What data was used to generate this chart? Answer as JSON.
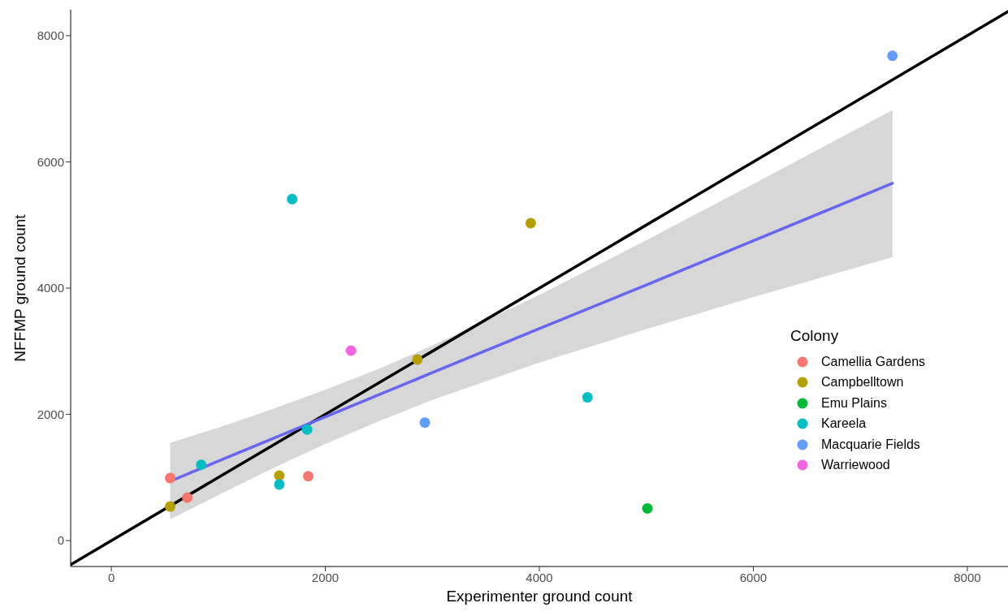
{
  "chart_data": {
    "type": "scatter",
    "xlabel": "Experimenter ground count",
    "ylabel": "NFFMP ground count",
    "legend_title": "Colony",
    "legend": "right",
    "marker": "circle",
    "xlim": [
      -380,
      8380
    ],
    "ylim": [
      -410,
      8410
    ],
    "xticks": [
      0,
      2000,
      4000,
      6000,
      8000
    ],
    "yticks": [
      0,
      2000,
      4000,
      6000,
      8000
    ],
    "series": [
      {
        "type": "line",
        "marker": "none",
        "color": "#000000",
        "x": [
          -380,
          8380
        ],
        "values": [
          -380,
          8380
        ]
      },
      {
        "type": "line",
        "marker": "none",
        "color": "#6666ee",
        "x": [
          550,
          1000,
          1500,
          2000,
          2500,
          3000,
          4000,
          5000,
          6000,
          7300
        ],
        "values": [
          940,
          1260,
          1610,
          1960,
          2310,
          2660,
          3360,
          4050,
          4750,
          5660
        ],
        "lower": [
          340,
          720,
          1140,
          1530,
          1890,
          2230,
          2820,
          3350,
          3860,
          4490
        ],
        "upper": [
          1550,
          1790,
          2080,
          2390,
          2720,
          3090,
          3890,
          4760,
          5650,
          6820
        ]
      },
      {
        "name": "Camellia Gardens",
        "color": "#f8766d",
        "x": [
          550,
          710,
          1840
        ],
        "values": [
          990,
          680,
          1020
        ]
      },
      {
        "name": "Campbelltown",
        "color": "#b79f00",
        "x": [
          550,
          1570,
          2860,
          3920
        ],
        "values": [
          540,
          1030,
          2870,
          5030
        ]
      },
      {
        "name": "Emu Plains",
        "color": "#00ba38",
        "x": [
          5010
        ],
        "values": [
          510
        ]
      },
      {
        "name": "Kareela",
        "color": "#00bfc4",
        "x": [
          840,
          1570,
          1830,
          1690,
          4450
        ],
        "values": [
          1200,
          890,
          1760,
          5410,
          2270
        ]
      },
      {
        "name": "Macquarie Fields",
        "color": "#619cff",
        "x": [
          2930,
          7300
        ],
        "values": [
          1870,
          7680
        ]
      },
      {
        "name": "Warriewood",
        "color": "#f564e3",
        "x": [
          2240
        ],
        "values": [
          3010
        ]
      }
    ]
  }
}
